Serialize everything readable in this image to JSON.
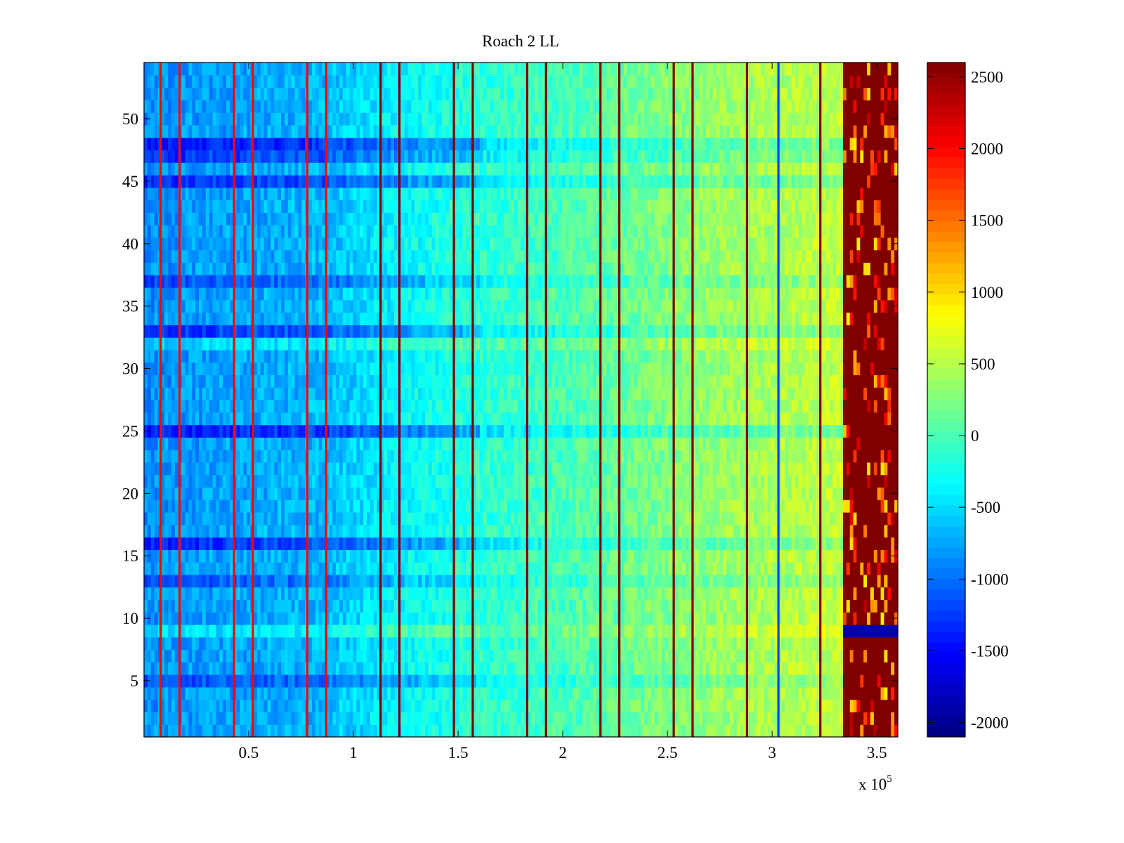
{
  "chart_data": {
    "type": "heatmap",
    "title": "Roach 2 LL",
    "xlabel": "",
    "ylabel": "",
    "x_exponent_label": "x 10",
    "x_exponent_power": "5",
    "xlim": [
      0,
      3.6
    ],
    "ylim": [
      0.5,
      54.5
    ],
    "x_ticks": [
      0.5,
      1,
      1.5,
      2,
      2.5,
      3,
      3.5
    ],
    "x_tick_labels": [
      "0.5",
      "1",
      "1.5",
      "2",
      "2.5",
      "3",
      "3.5"
    ],
    "y_ticks": [
      5,
      10,
      15,
      20,
      25,
      30,
      35,
      40,
      45,
      50
    ],
    "y_tick_labels": [
      "5",
      "10",
      "15",
      "20",
      "25",
      "30",
      "35",
      "40",
      "45",
      "50"
    ],
    "num_rows": 54,
    "colorbar": {
      "colormap": "jet",
      "clim": [
        -2100,
        2600
      ],
      "ticks": [
        -2000,
        -1500,
        -1000,
        -500,
        0,
        500,
        1000,
        1500,
        2000,
        2500
      ],
      "tick_labels": [
        "-2000",
        "-1500",
        "-1000",
        "-500",
        "0",
        "500",
        "1000",
        "1500",
        "2000",
        "2500"
      ]
    },
    "background_trend": [
      {
        "x": 0.0,
        "value": -850
      },
      {
        "x": 0.87,
        "value": -650
      },
      {
        "x": 1.2,
        "value": -350
      },
      {
        "x": 1.6,
        "value": -150
      },
      {
        "x": 2.0,
        "value": 0
      },
      {
        "x": 2.3,
        "value": 150
      },
      {
        "x": 2.7,
        "value": 350
      },
      {
        "x": 3.0,
        "value": 450
      },
      {
        "x": 3.33,
        "value": 550
      }
    ],
    "saturated_region": {
      "x_start": 3.34,
      "x_end": 3.6,
      "value": 2600
    },
    "vertical_stripes": [
      {
        "x": 0.08,
        "value": 2000
      },
      {
        "x": 0.17,
        "value": 2000
      },
      {
        "x": 0.43,
        "value": 2000
      },
      {
        "x": 0.52,
        "value": 2000
      },
      {
        "x": 0.78,
        "value": 2000
      },
      {
        "x": 0.87,
        "value": 2000
      },
      {
        "x": 1.13,
        "value": 2600
      },
      {
        "x": 1.22,
        "value": 2600
      },
      {
        "x": 1.48,
        "value": 2600
      },
      {
        "x": 1.57,
        "value": 2600
      },
      {
        "x": 1.83,
        "value": 2600
      },
      {
        "x": 1.92,
        "value": 2600
      },
      {
        "x": 2.18,
        "value": 2600
      },
      {
        "x": 2.27,
        "value": 2600
      },
      {
        "x": 2.53,
        "value": 2600
      },
      {
        "x": 2.62,
        "value": 2600
      },
      {
        "x": 2.88,
        "value": 2600
      },
      {
        "x": 3.03,
        "value": -1200
      },
      {
        "x": 3.23,
        "value": 2600
      }
    ],
    "low_rows": [
      {
        "row": 48,
        "offset": -600
      },
      {
        "row": 47,
        "offset": -450
      },
      {
        "row": 45,
        "offset": -500
      },
      {
        "row": 37,
        "offset": -350
      },
      {
        "row": 33,
        "offset": -450
      },
      {
        "row": 25,
        "offset": -600
      },
      {
        "row": 16,
        "offset": -500
      },
      {
        "row": 13,
        "offset": -300
      },
      {
        "row": 5,
        "offset": -350
      }
    ],
    "high_rows": [
      {
        "row": 32,
        "offset": 250
      },
      {
        "row": 9,
        "offset": 300
      }
    ]
  }
}
